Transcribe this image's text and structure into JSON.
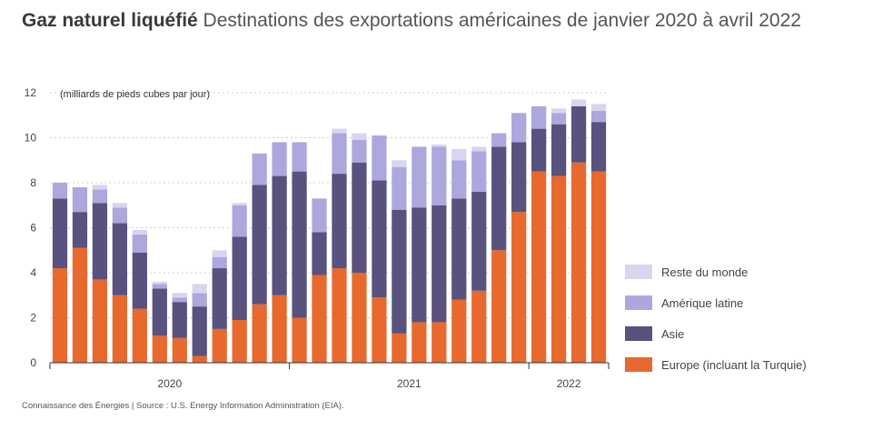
{
  "title_bold": "Gaz naturel liquéfié",
  "title_rest": " Destinations des exportations américaines de janvier 2020 à avril 2022",
  "source": "Connaissance des Énergies | Source : U.S. Energy Information Administration (EIA).",
  "colors": {
    "europe": "#e8692d",
    "asie": "#57527e",
    "amerique": "#aca8dd",
    "reste": "#d8d6ee"
  },
  "legend": [
    {
      "label": "Reste du monde",
      "key": "reste"
    },
    {
      "label": "Amérique latine",
      "key": "amerique"
    },
    {
      "label": "Asie",
      "key": "asie"
    },
    {
      "label": "Europe (incluant la Turquie)",
      "key": "europe"
    }
  ],
  "chart_data": {
    "type": "bar",
    "stacked": true,
    "unit_label": "(milliards de pieds cubes par jour)",
    "ylim": [
      0,
      12
    ],
    "yticks": [
      0,
      2,
      4,
      6,
      8,
      10,
      12
    ],
    "year_labels": [
      "2020",
      "2021",
      "2022"
    ],
    "categories": [
      "2020-01",
      "2020-02",
      "2020-03",
      "2020-04",
      "2020-05",
      "2020-06",
      "2020-07",
      "2020-08",
      "2020-09",
      "2020-10",
      "2020-11",
      "2020-12",
      "2021-01",
      "2021-02",
      "2021-03",
      "2021-04",
      "2021-05",
      "2021-06",
      "2021-07",
      "2021-08",
      "2021-09",
      "2021-10",
      "2021-11",
      "2021-12",
      "2022-01",
      "2022-02",
      "2022-03",
      "2022-04"
    ],
    "series": [
      {
        "name": "Europe (incluant la Turquie)",
        "key": "europe",
        "values": [
          4.2,
          5.1,
          3.7,
          3.0,
          2.4,
          1.2,
          1.1,
          0.3,
          1.5,
          1.9,
          2.6,
          3.0,
          2.0,
          3.9,
          4.2,
          4.0,
          2.9,
          1.3,
          1.8,
          1.8,
          2.8,
          3.2,
          5.0,
          6.7,
          8.5,
          8.3,
          8.9,
          8.5
        ]
      },
      {
        "name": "Asie",
        "key": "asie",
        "values": [
          3.1,
          1.6,
          3.4,
          3.2,
          2.5,
          2.1,
          1.6,
          2.2,
          2.7,
          3.7,
          5.3,
          5.3,
          6.5,
          1.9,
          4.2,
          4.9,
          5.2,
          5.5,
          5.1,
          5.2,
          4.5,
          4.4,
          4.6,
          3.1,
          1.9,
          2.3,
          2.5,
          2.2
        ]
      },
      {
        "name": "Amérique latine",
        "key": "amerique",
        "values": [
          0.7,
          1.1,
          0.6,
          0.7,
          0.8,
          0.2,
          0.2,
          0.6,
          0.5,
          1.4,
          1.4,
          1.5,
          1.3,
          1.5,
          1.8,
          1.0,
          2.0,
          1.9,
          2.7,
          2.6,
          1.7,
          1.8,
          0.6,
          1.3,
          1.0,
          0.5,
          0.0,
          0.5
        ]
      },
      {
        "name": "Reste du monde",
        "key": "reste",
        "values": [
          0.0,
          0.0,
          0.2,
          0.2,
          0.2,
          0.1,
          0.2,
          0.4,
          0.3,
          0.1,
          0.0,
          0.0,
          0.0,
          0.0,
          0.2,
          0.3,
          0.0,
          0.3,
          0.0,
          0.1,
          0.5,
          0.2,
          0.0,
          0.0,
          0.0,
          0.2,
          0.3,
          0.3
        ]
      }
    ]
  }
}
